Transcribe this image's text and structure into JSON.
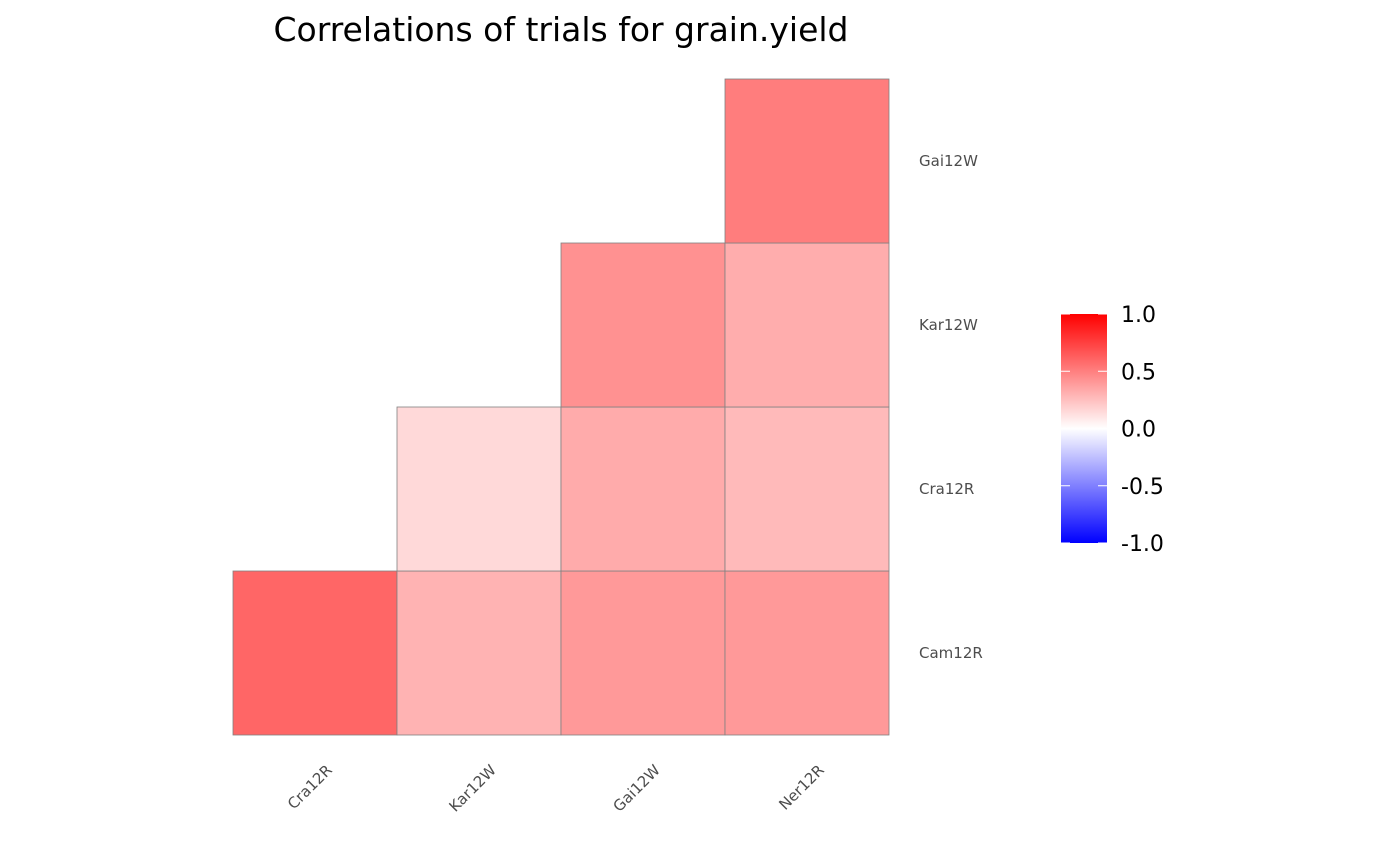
{
  "chart_data": {
    "type": "heatmap",
    "title": "Correlations of trials for grain.yield",
    "xlabel": "",
    "ylabel": "",
    "x_categories": [
      "Cra12R",
      "Kar12W",
      "Gai12W",
      "Ner12R"
    ],
    "y_categories": [
      "Cam12R",
      "Cra12R",
      "Kar12W",
      "Gai12W"
    ],
    "cells": [
      {
        "x": "Cra12R",
        "y": "Cam12R",
        "value": 0.6
      },
      {
        "x": "Kar12W",
        "y": "Cam12R",
        "value": 0.3
      },
      {
        "x": "Gai12W",
        "y": "Cam12R",
        "value": 0.4
      },
      {
        "x": "Ner12R",
        "y": "Cam12R",
        "value": 0.4
      },
      {
        "x": "Kar12W",
        "y": "Cra12R",
        "value": 0.15
      },
      {
        "x": "Gai12W",
        "y": "Cra12R",
        "value": 0.33
      },
      {
        "x": "Ner12R",
        "y": "Cra12R",
        "value": 0.27
      },
      {
        "x": "Gai12W",
        "y": "Kar12W",
        "value": 0.43
      },
      {
        "x": "Ner12R",
        "y": "Kar12W",
        "value": 0.32
      },
      {
        "x": "Ner12R",
        "y": "Gai12W",
        "value": 0.51
      }
    ],
    "color_scale": {
      "low": "#0000ff",
      "mid": "#ffffff",
      "high": "#ff0000",
      "limits": [
        -1.0,
        1.0
      ],
      "breaks": [
        -1.0,
        -0.5,
        0.0,
        0.5,
        1.0
      ],
      "break_labels": [
        "-1.0",
        "-0.5",
        "0.0",
        "0.5",
        "1.0"
      ]
    },
    "cell_border_color": "#808080",
    "grid": false,
    "legend_position": "right"
  }
}
